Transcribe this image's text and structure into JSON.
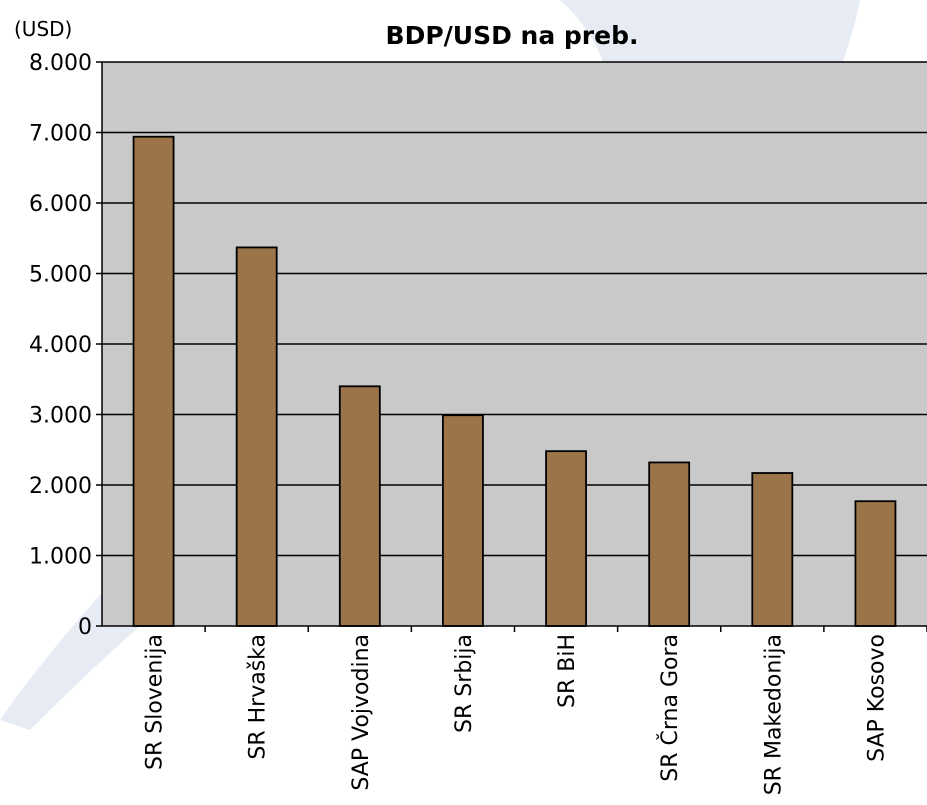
{
  "chart_data": {
    "type": "bar",
    "title": "BDP/USD na preb.",
    "unit_label": "(USD)",
    "xlabel": "",
    "ylabel": "",
    "categories": [
      "SR Slovenija",
      "SR Hrvaška",
      "SAP Vojvodina",
      "SR Srbija",
      "SR BiH",
      "SR Črna Gora",
      "SR Makedonija",
      "SAP Kosovo"
    ],
    "values": [
      6940,
      5370,
      3400,
      2990,
      2480,
      2320,
      2170,
      1770
    ],
    "ylim": [
      0,
      8000
    ],
    "yticks": [
      0,
      1000,
      2000,
      3000,
      4000,
      5000,
      6000,
      7000,
      8000
    ],
    "ytick_labels": [
      "0",
      "1.000",
      "2.000",
      "3.000",
      "4.000",
      "5.000",
      "6.000",
      "7.000",
      "8.000"
    ],
    "grid": true,
    "legend": "none",
    "colors": {
      "bar_fill": "#9C7449",
      "bar_stroke": "#000000",
      "plot_background": "#C9C9C9",
      "gridline": "#000000",
      "watermark": "#D7DEEC"
    }
  }
}
